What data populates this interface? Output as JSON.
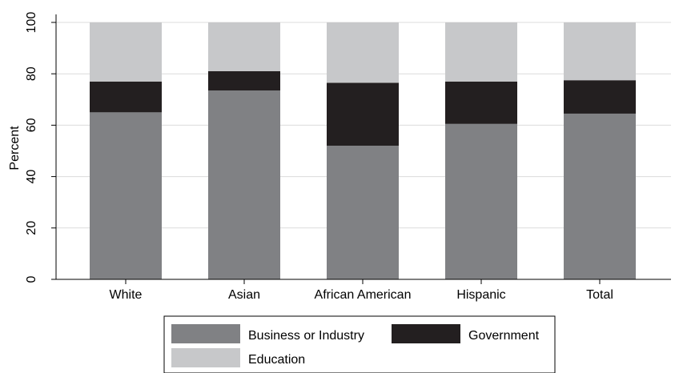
{
  "chart_data": {
    "type": "bar",
    "stacked": true,
    "categories": [
      "White",
      "Asian",
      "African American",
      "Hispanic",
      "Total"
    ],
    "series": [
      {
        "name": "Business or Industry",
        "color": "#808184",
        "values": [
          65,
          73.5,
          52,
          60.5,
          64.5
        ]
      },
      {
        "name": "Government",
        "color": "#231f20",
        "values": [
          12,
          7.5,
          24.5,
          16.5,
          13
        ]
      },
      {
        "name": "Education",
        "color": "#c7c8ca",
        "values": [
          23,
          19,
          23.5,
          23,
          22.5
        ]
      }
    ],
    "ylabel": "Percent",
    "ylim": [
      0,
      100
    ],
    "yticks": [
      0,
      20,
      40,
      60,
      80,
      100
    ],
    "grid": true,
    "legend_position": "bottom"
  }
}
